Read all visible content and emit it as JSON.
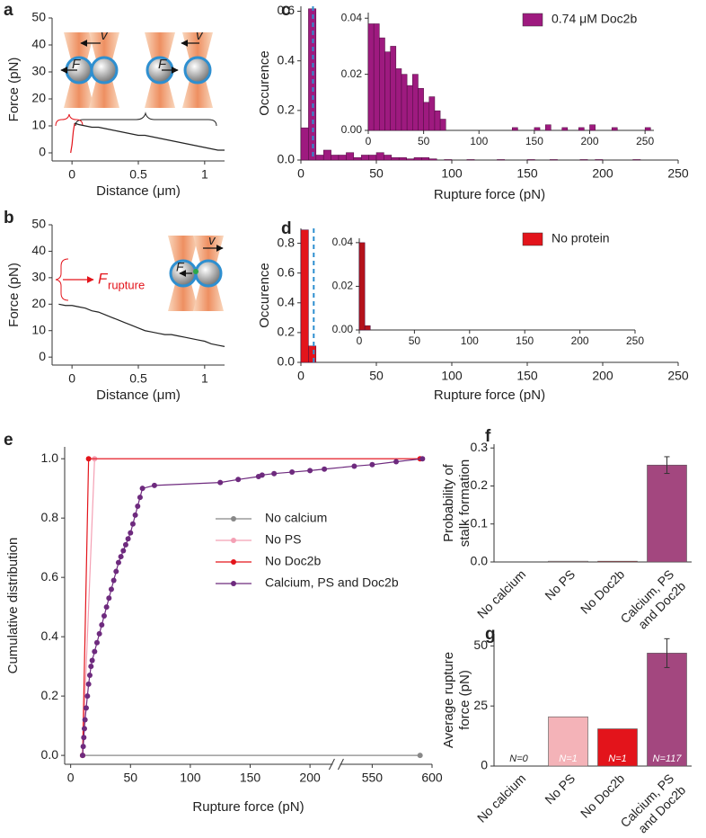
{
  "chart_data": [
    {
      "type": "line",
      "panel": "a",
      "xlabel": "Distance (μm)",
      "ylabel": "Force (pN)",
      "xlim": [
        -0.15,
        1.15
      ],
      "xticks": [
        0,
        0.5,
        1
      ],
      "ylim": [
        -3,
        50
      ],
      "yticks": [
        0,
        10,
        20,
        30,
        40,
        50
      ],
      "annotations": [
        "v",
        "F",
        "v",
        "F"
      ],
      "series": [
        {
          "color": "#e3141b",
          "x": [
            -0.01,
            0,
            0.01,
            0.02
          ],
          "values": [
            0,
            3,
            8,
            11
          ]
        },
        {
          "color": "#222222",
          "x": [
            0.02,
            0.05,
            0.1,
            0.15,
            0.2,
            0.25,
            0.3,
            0.35,
            0.4,
            0.45,
            0.5,
            0.55,
            0.6,
            0.65,
            0.7,
            0.75,
            0.8,
            0.85,
            0.9,
            0.95,
            1,
            1.05,
            1.1,
            1.15
          ],
          "values": [
            11,
            10.5,
            10,
            9.5,
            9.5,
            9,
            8.5,
            8,
            7.5,
            7,
            6.5,
            6.5,
            6,
            5.5,
            5,
            4.5,
            4,
            3.5,
            3,
            2.5,
            2,
            1.5,
            1,
            1
          ]
        }
      ]
    },
    {
      "type": "line",
      "panel": "b",
      "xlabel": "Distance (μm)",
      "ylabel": "Force (pN)",
      "xlim": [
        -0.15,
        1.15
      ],
      "xticks": [
        0,
        0.5,
        1
      ],
      "ylim": [
        -3,
        50
      ],
      "yticks": [
        0,
        10,
        20,
        30,
        40,
        50
      ],
      "annotations": [
        "F",
        "rupture",
        "F",
        "v"
      ],
      "series": [
        {
          "color": "#222222",
          "x": [
            -0.1,
            -0.05,
            0,
            0.05,
            0.1,
            0.15,
            0.2,
            0.25,
            0.3,
            0.35,
            0.4,
            0.45,
            0.5,
            0.55,
            0.6,
            0.65,
            0.7,
            0.75,
            0.8,
            0.85,
            0.9,
            0.95,
            1,
            1.05,
            1.1,
            1.15
          ],
          "values": [
            20,
            19.5,
            19.5,
            19,
            18.5,
            17.5,
            17,
            16,
            15,
            14,
            13,
            12,
            11,
            10,
            9.5,
            9,
            8.5,
            8.5,
            8,
            7.5,
            7,
            6.5,
            6,
            5,
            4.5,
            4
          ]
        }
      ]
    },
    {
      "type": "histogram",
      "panel": "c",
      "xlabel": "Rupture force (pN)",
      "ylabel": "Occurence",
      "xlim": [
        0,
        250
      ],
      "xticks": [
        0,
        50,
        100,
        150,
        200,
        250
      ],
      "ylim": [
        0,
        0.62
      ],
      "yticks": [
        {
          "value": 0,
          "label": "0.0"
        },
        0.2,
        0.4,
        0.6
      ],
      "vline": 8,
      "bins": [
        0,
        5,
        10,
        15,
        20,
        25,
        30,
        35,
        40,
        45,
        50,
        55,
        60,
        65,
        70,
        75,
        80,
        85,
        90,
        95,
        100,
        105,
        110,
        115,
        120,
        125,
        130,
        135,
        140,
        145,
        150,
        155,
        160,
        165,
        170,
        175,
        180,
        185,
        190,
        195,
        200,
        205,
        210,
        215,
        220,
        225,
        230
      ],
      "series": [
        {
          "name": "0.74 μM Doc2b",
          "color": "#9e1a7f",
          "values": [
            0.13,
            0.61,
            0.02,
            0.04,
            0.02,
            0.02,
            0.03,
            0.01,
            0.02,
            0.02,
            0.03,
            0.02,
            0.01,
            0.01,
            0.005,
            0.01,
            0.01,
            0.005,
            0,
            0.002,
            0,
            0,
            0.002,
            0,
            0,
            0,
            0.002,
            0,
            0,
            0,
            0.002,
            0,
            0,
            0.002,
            0,
            0,
            0,
            0.002,
            0,
            0.002,
            0,
            0,
            0,
            0,
            0.002,
            0
          ]
        }
      ]
    },
    {
      "type": "histogram",
      "xlim": [
        0,
        258
      ],
      "xticks": [
        0,
        50,
        100,
        150,
        200,
        250
      ],
      "ylim": [
        0,
        0.042
      ],
      "yticks": [
        {
          "value": 0,
          "label": "0.00"
        },
        0.02,
        0.04
      ],
      "bins": [
        0,
        5,
        10,
        15,
        20,
        25,
        30,
        35,
        40,
        45,
        50,
        55,
        60,
        65,
        70,
        75,
        80,
        85,
        90,
        95,
        100,
        105,
        110,
        115,
        120,
        125,
        130,
        135,
        140,
        145,
        150,
        155,
        160,
        165,
        170,
        175,
        180,
        185,
        190,
        195,
        200,
        205,
        210,
        215,
        220,
        225,
        230,
        235,
        240,
        245,
        250,
        255
      ],
      "series": [
        {
          "color": "#9e1a7f",
          "values": [
            0.038,
            0.038,
            0.033,
            0.028,
            0.03,
            0.022,
            0.02,
            0.016,
            0.02,
            0.015,
            0.01,
            0.012,
            0.007,
            0.004,
            0,
            0,
            0,
            0,
            0,
            0,
            0,
            0,
            0,
            0,
            0,
            0,
            0.001,
            0,
            0,
            0,
            0.001,
            0,
            0.002,
            0,
            0,
            0.001,
            0,
            0,
            0.001,
            0,
            0.002,
            0,
            0,
            0,
            0.001,
            0,
            0,
            0,
            0,
            0,
            0.001
          ]
        }
      ]
    },
    {
      "type": "histogram",
      "panel": "d",
      "xlabel": "Rupture force (pN)",
      "ylabel": "Occurence",
      "xlim": [
        0,
        250
      ],
      "xticks": [
        0,
        50,
        100,
        150,
        200,
        250
      ],
      "ylim": [
        0,
        0.9
      ],
      "yticks": [
        {
          "value": 0,
          "label": "0.0"
        },
        0.2,
        0.4,
        0.6,
        0.8
      ],
      "vline": 8.5,
      "bins": [
        0,
        5,
        10
      ],
      "series": [
        {
          "name": "No protein",
          "color": "#e3141b",
          "values": [
            0.89,
            0.11
          ]
        }
      ]
    },
    {
      "type": "histogram",
      "xlim": [
        0,
        250
      ],
      "xticks": [
        0,
        50,
        100,
        150,
        200,
        250
      ],
      "ylim": [
        0,
        0.042
      ],
      "yticks": [
        {
          "value": 0,
          "label": "0.00"
        },
        0.02,
        0.04
      ],
      "bins": [
        0,
        5,
        10
      ],
      "series": [
        {
          "color": "#b5121b",
          "values": [
            0.04,
            0.002
          ]
        }
      ]
    },
    {
      "type": "line",
      "panel": "e",
      "xlabel": "Rupture force (pN)",
      "ylabel": "Cumulative distribution",
      "xlim": [
        -5,
        600
      ],
      "xbreak": [
        222,
        520
      ],
      "xticks": [
        0,
        50,
        100,
        150,
        200,
        550,
        600
      ],
      "ylim": [
        -0.03,
        1.04
      ],
      "yticks": [
        {
          "value": 0,
          "label": "0.0"
        },
        0.2,
        0.4,
        0.6,
        0.8,
        {
          "value": 1,
          "label": "1.0"
        }
      ],
      "series": [
        {
          "name": "No calcium",
          "color": "#888888",
          "markers": true,
          "x": [
            10,
            590
          ],
          "values": [
            0,
            0
          ]
        },
        {
          "name": "No PS",
          "color": "#f4a0b4",
          "markers": true,
          "x": [
            10,
            20,
            590
          ],
          "values": [
            0,
            1,
            1
          ]
        },
        {
          "name": "No Doc2b",
          "color": "#e3141b",
          "markers": true,
          "x": [
            10,
            15,
            590
          ],
          "values": [
            0,
            1,
            1
          ]
        },
        {
          "name": "Calcium, PS and Doc2b",
          "color": "#6e2a7e",
          "markers": true,
          "x": [
            10,
            10.5,
            11,
            11.5,
            12,
            13,
            14,
            15,
            16,
            17,
            18,
            20,
            22,
            24,
            26,
            28,
            30,
            32,
            34,
            36,
            38,
            40,
            42,
            44,
            46,
            48,
            50,
            52,
            54,
            56,
            58,
            60,
            70,
            125,
            140,
            157,
            160,
            170,
            185,
            200,
            212,
            535,
            550,
            570,
            592
          ],
          "values": [
            0,
            0.03,
            0.06,
            0.09,
            0.12,
            0.16,
            0.2,
            0.24,
            0.27,
            0.3,
            0.32,
            0.35,
            0.38,
            0.41,
            0.44,
            0.47,
            0.5,
            0.53,
            0.56,
            0.59,
            0.62,
            0.65,
            0.67,
            0.69,
            0.71,
            0.73,
            0.75,
            0.78,
            0.81,
            0.84,
            0.87,
            0.9,
            0.91,
            0.92,
            0.93,
            0.94,
            0.945,
            0.95,
            0.955,
            0.96,
            0.965,
            0.975,
            0.98,
            0.99,
            1.0
          ]
        }
      ]
    },
    {
      "type": "bar",
      "panel": "f",
      "ylabel": [
        "Probability of",
        "stalk formation"
      ],
      "categories": [
        "No calcium",
        "No PS",
        "No Doc2b",
        [
          "Calcium, PS",
          "and Doc2b"
        ]
      ],
      "values": [
        0,
        0.002,
        0.002,
        0.255
      ],
      "errors": [
        null,
        null,
        null,
        0.022
      ],
      "colors": [
        "#888888",
        "#f4b3b8",
        "#e3141b",
        "#a3477f"
      ],
      "ylim": [
        0,
        0.31
      ],
      "yticks": [
        {
          "value": 0,
          "label": "0.0"
        },
        0.1,
        0.2,
        0.3
      ]
    },
    {
      "type": "bar",
      "panel": "g",
      "ylabel": [
        "Average rupture",
        "force (pN)"
      ],
      "categories": [
        "No calcium",
        "No PS",
        "No Doc2b",
        [
          "Calcium, PS",
          "and Doc2b"
        ]
      ],
      "values": [
        0,
        20.5,
        15.5,
        47
      ],
      "errors": [
        null,
        null,
        null,
        6
      ],
      "n_labels": [
        "N=0",
        "N=1",
        "N=1",
        "N=117"
      ],
      "colors": [
        "#888888",
        "#f4b3b8",
        "#e3141b",
        "#a3477f"
      ],
      "ylim": [
        0,
        55
      ],
      "yticks": [
        0,
        25,
        50
      ]
    }
  ]
}
